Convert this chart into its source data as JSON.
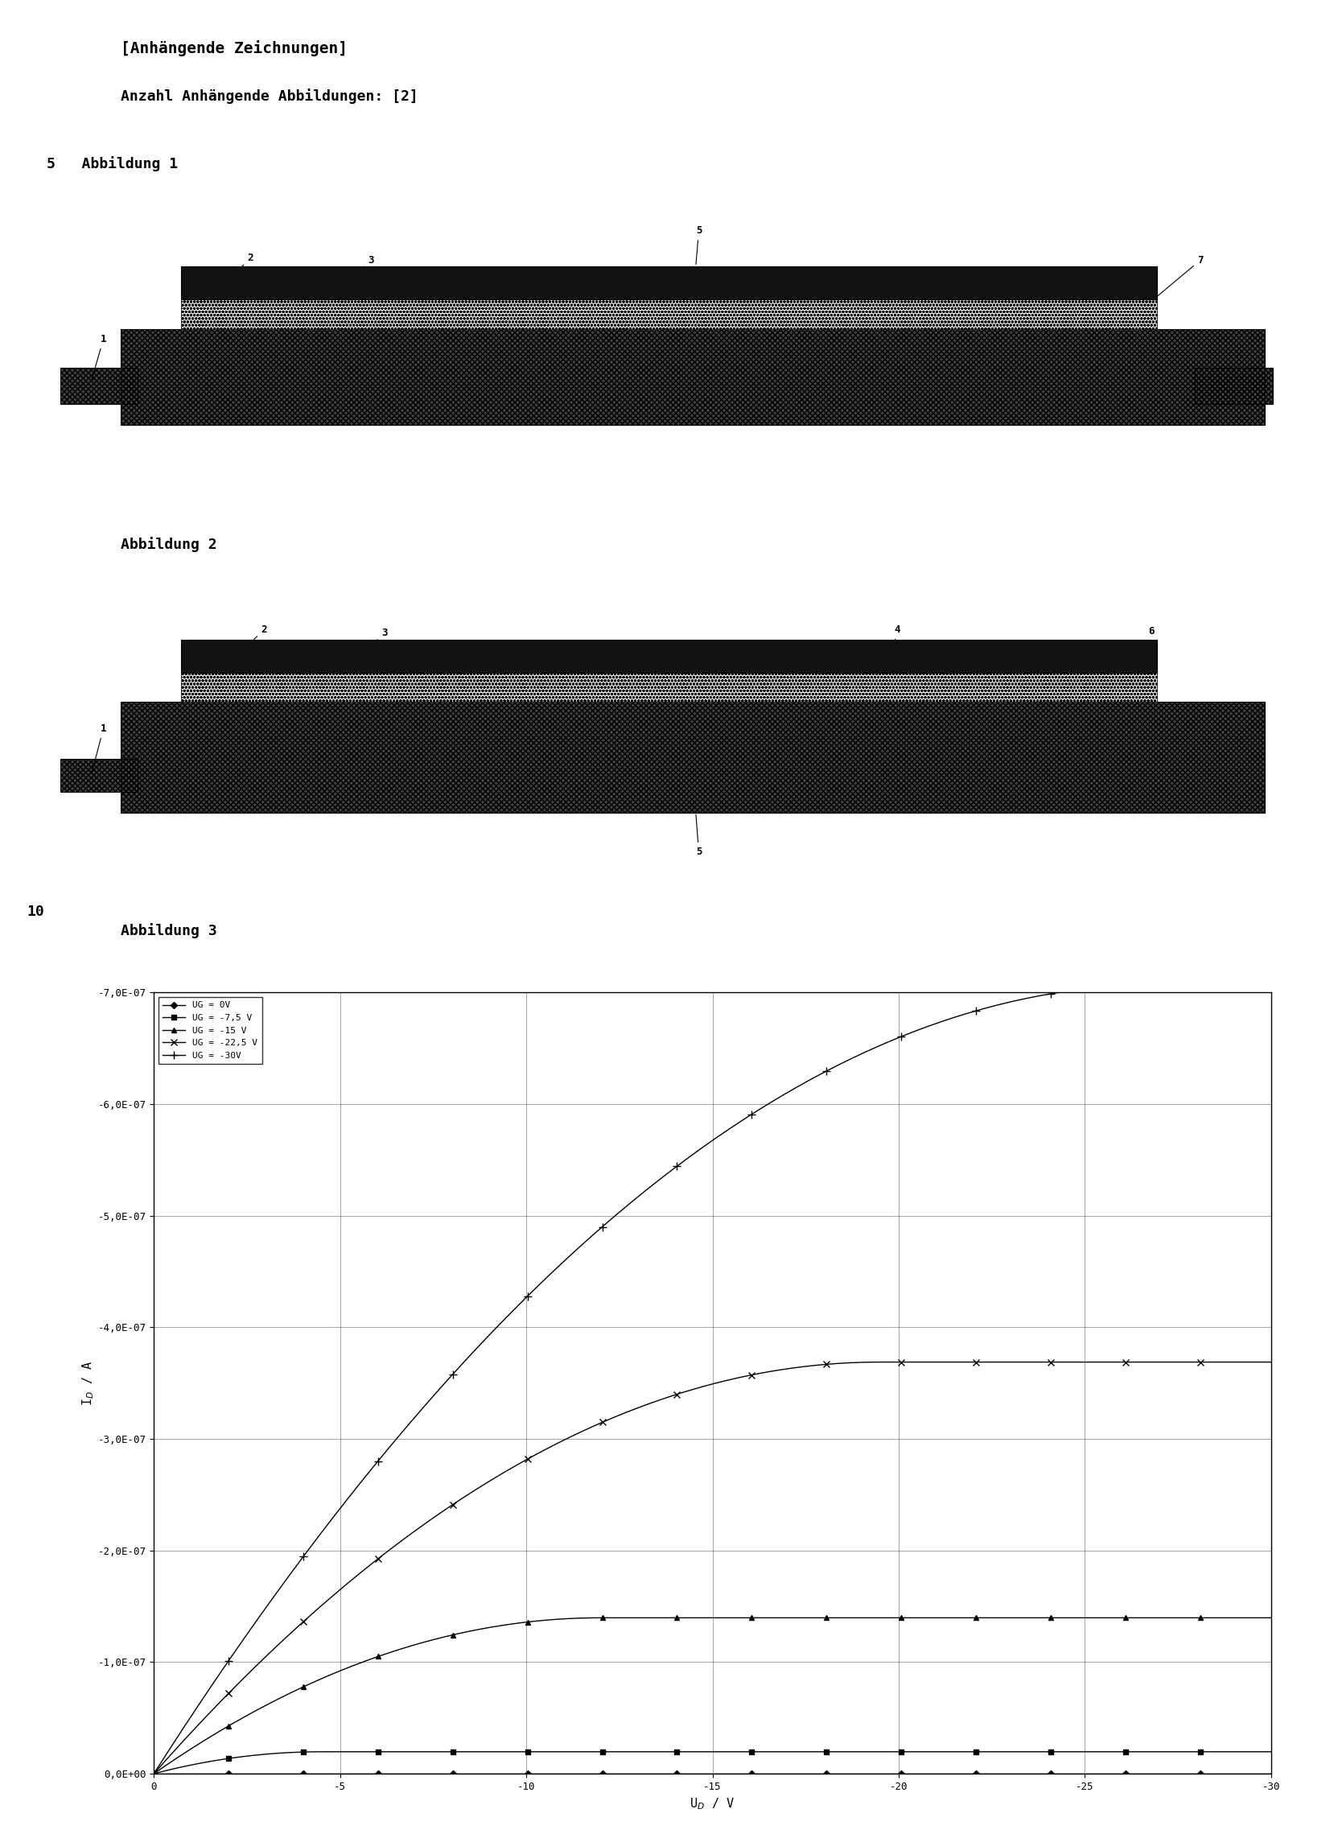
{
  "title1": "[Anhängende Zeichnungen]",
  "title2": "Anzahl Anhängende Abbildungen: [2]",
  "label_5_abbildung": "5   Abbildung 1",
  "label_abbildung2": "Abbildung 2",
  "label_10": "10",
  "label_abbildung3": "Abbildung 3",
  "legend_labels": [
    "UG = 0V",
    "UG = -7,5 V",
    "UG = -15 V",
    "UG = -22,5 V",
    "UG = -30V"
  ],
  "legend_labels_display": [
    "–UG = 0V",
    "■– UG = -7,5 V",
    "▲– UG = -15 V",
    "×– UG = -22,5 V",
    "+– UG = -30V"
  ],
  "y_labels": [
    "0,0E+00",
    "-1,0E-07",
    "-2,0E-07",
    "-3,0E-07",
    "-4,0E-07",
    "-5,0E-07",
    "-6,0E-07",
    "-7,0E-07"
  ],
  "x_labels": [
    "0",
    "-5",
    "-10",
    "-15",
    "-20",
    "-25",
    "-30"
  ],
  "xlabel": "U_D / V",
  "ylabel": "I_D / A",
  "background_color": "#ffffff"
}
